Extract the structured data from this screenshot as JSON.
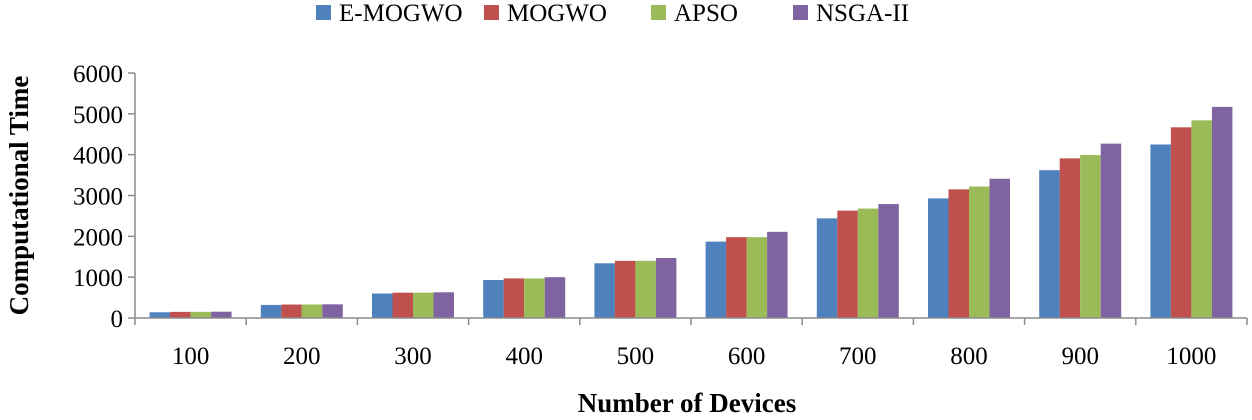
{
  "chart_data": {
    "type": "bar",
    "title": "",
    "xlabel": "Number of Devices",
    "ylabel": "Computational Time",
    "categories": [
      "100",
      "200",
      "300",
      "400",
      "500",
      "600",
      "700",
      "800",
      "900",
      "1000"
    ],
    "ylim": [
      0,
      6000
    ],
    "yticks": [
      0,
      1000,
      2000,
      3000,
      4000,
      5000,
      6000
    ],
    "legend_position": "top",
    "grid": false,
    "series": [
      {
        "name": "E-MOGWO",
        "color": "#4f81bd",
        "values": [
          140,
          320,
          600,
          930,
          1340,
          1870,
          2440,
          2930,
          3620,
          4250
        ]
      },
      {
        "name": "MOGWO",
        "color": "#c0504d",
        "values": [
          150,
          330,
          620,
          970,
          1400,
          1980,
          2630,
          3150,
          3910,
          4670
        ]
      },
      {
        "name": "APSO",
        "color": "#9bbb59",
        "values": [
          150,
          330,
          620,
          970,
          1400,
          1980,
          2680,
          3220,
          3990,
          4840
        ]
      },
      {
        "name": "NSGA-II",
        "color": "#8064a2",
        "values": [
          155,
          335,
          630,
          1000,
          1470,
          2110,
          2790,
          3410,
          4270,
          5170
        ]
      }
    ]
  }
}
